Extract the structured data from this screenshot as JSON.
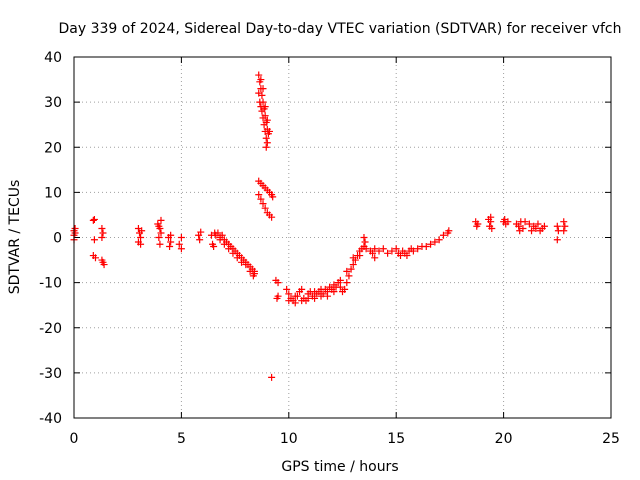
{
  "chart_data": {
    "type": "scatter",
    "title": "Day 339 of 2024, Sidereal Day-to-day VTEC variation (SDTVAR) for receiver vfch",
    "xlabel": "GPS time / hours",
    "ylabel": "SDTVAR / TECUs",
    "xlim": [
      0,
      25
    ],
    "ylim": [
      -40,
      40
    ],
    "x_ticks": [
      0,
      5,
      10,
      15,
      20,
      25
    ],
    "y_ticks": [
      -40,
      -30,
      -20,
      -10,
      0,
      10,
      20,
      30,
      40
    ],
    "grid": true,
    "marker": "+",
    "color": "#ff0000",
    "series": [
      {
        "name": "SDTVAR",
        "points": [
          [
            0.0,
            1.5
          ],
          [
            0.0,
            0.5
          ],
          [
            0.0,
            -0.5
          ],
          [
            0.05,
            2.0
          ],
          [
            0.05,
            1.0
          ],
          [
            0.9,
            3.8
          ],
          [
            0.95,
            4.0
          ],
          [
            0.95,
            -0.5
          ],
          [
            0.9,
            -4.0
          ],
          [
            1.0,
            -4.5
          ],
          [
            1.3,
            2.0
          ],
          [
            1.35,
            1.0
          ],
          [
            1.3,
            0.0
          ],
          [
            1.3,
            -5.0
          ],
          [
            1.4,
            -6.0
          ],
          [
            1.35,
            -5.5
          ],
          [
            3.0,
            2.0
          ],
          [
            3.05,
            1.0
          ],
          [
            3.1,
            0.0
          ],
          [
            3.0,
            -1.0
          ],
          [
            3.1,
            -1.5
          ],
          [
            3.15,
            1.5
          ],
          [
            3.9,
            3.0
          ],
          [
            4.0,
            2.0
          ],
          [
            4.05,
            1.0
          ],
          [
            3.95,
            0.0
          ],
          [
            4.0,
            -1.5
          ],
          [
            4.05,
            3.8
          ],
          [
            3.95,
            2.5
          ],
          [
            4.4,
            0.0
          ],
          [
            4.5,
            -1.0
          ],
          [
            4.45,
            -2.0
          ],
          [
            4.5,
            0.5
          ],
          [
            4.9,
            -1.5
          ],
          [
            5.0,
            -2.5
          ],
          [
            5.0,
            0.0
          ],
          [
            5.8,
            0.5
          ],
          [
            5.85,
            -0.5
          ],
          [
            5.9,
            1.2
          ],
          [
            6.4,
            0.5
          ],
          [
            6.45,
            -1.5
          ],
          [
            6.5,
            -2.0
          ],
          [
            6.55,
            1.0
          ],
          [
            6.6,
            0.5
          ],
          [
            6.8,
            0.0
          ],
          [
            7.0,
            -0.5
          ],
          [
            7.2,
            -1.5
          ],
          [
            7.4,
            -2.5
          ],
          [
            7.6,
            -3.5
          ],
          [
            7.8,
            -4.5
          ],
          [
            8.0,
            -5.5
          ],
          [
            8.2,
            -6.5
          ],
          [
            8.4,
            -7.5
          ],
          [
            6.7,
            1.0
          ],
          [
            6.9,
            0.5
          ],
          [
            7.1,
            -1.0
          ],
          [
            7.3,
            -2.0
          ],
          [
            7.5,
            -3.0
          ],
          [
            7.7,
            -4.0
          ],
          [
            7.9,
            -5.0
          ],
          [
            8.1,
            -6.0
          ],
          [
            8.3,
            -7.0
          ],
          [
            8.4,
            -8.0
          ],
          [
            6.8,
            -0.5
          ],
          [
            7.0,
            -1.5
          ],
          [
            7.2,
            -2.5
          ],
          [
            7.4,
            -3.5
          ],
          [
            7.6,
            -4.5
          ],
          [
            7.8,
            -5.5
          ],
          [
            8.0,
            -6.0
          ],
          [
            8.2,
            -7.5
          ],
          [
            8.35,
            -8.5
          ],
          [
            8.6,
            36.0
          ],
          [
            8.65,
            34.5
          ],
          [
            8.7,
            33.0
          ],
          [
            8.75,
            31.5
          ],
          [
            8.8,
            30.0
          ],
          [
            8.85,
            28.5
          ],
          [
            8.9,
            27.0
          ],
          [
            8.95,
            25.5
          ],
          [
            9.0,
            24.0
          ],
          [
            9.05,
            23.0
          ],
          [
            8.6,
            32.0
          ],
          [
            8.65,
            30.0
          ],
          [
            8.7,
            29.0
          ],
          [
            8.75,
            28.0
          ],
          [
            8.8,
            26.5
          ],
          [
            8.85,
            25.0
          ],
          [
            8.9,
            23.5
          ],
          [
            8.95,
            22.0
          ],
          [
            9.0,
            21.0
          ],
          [
            8.95,
            20.0
          ],
          [
            8.7,
            35.0
          ],
          [
            8.8,
            33.0
          ],
          [
            8.9,
            29.0
          ],
          [
            9.0,
            26.0
          ],
          [
            9.1,
            23.5
          ],
          [
            8.6,
            12.5
          ],
          [
            8.7,
            12.0
          ],
          [
            8.8,
            11.5
          ],
          [
            8.9,
            11.0
          ],
          [
            9.0,
            10.5
          ],
          [
            9.1,
            10.0
          ],
          [
            9.2,
            9.5
          ],
          [
            9.25,
            9.0
          ],
          [
            8.6,
            9.5
          ],
          [
            8.7,
            8.5
          ],
          [
            8.8,
            7.5
          ],
          [
            8.9,
            6.5
          ],
          [
            9.0,
            5.5
          ],
          [
            9.1,
            5.0
          ],
          [
            9.2,
            4.5
          ],
          [
            9.2,
            -31.0
          ],
          [
            9.4,
            -9.5
          ],
          [
            9.5,
            -10.0
          ],
          [
            9.45,
            -13.5
          ],
          [
            9.5,
            -13.0
          ],
          [
            9.9,
            -11.5
          ],
          [
            10.0,
            -12.5
          ],
          [
            10.1,
            -13.5
          ],
          [
            10.2,
            -14.0
          ],
          [
            10.3,
            -14.5
          ],
          [
            10.4,
            -13.0
          ],
          [
            10.5,
            -12.0
          ],
          [
            10.6,
            -11.5
          ],
          [
            10.7,
            -13.5
          ],
          [
            10.8,
            -14.0
          ],
          [
            10.9,
            -12.5
          ],
          [
            11.0,
            -12.0
          ],
          [
            11.1,
            -13.0
          ],
          [
            11.2,
            -13.5
          ],
          [
            11.3,
            -12.5
          ],
          [
            11.4,
            -12.0
          ],
          [
            11.5,
            -13.0
          ],
          [
            11.6,
            -12.5
          ],
          [
            11.7,
            -11.5
          ],
          [
            11.8,
            -12.0
          ],
          [
            11.9,
            -11.0
          ],
          [
            12.0,
            -11.5
          ],
          [
            12.1,
            -10.5
          ],
          [
            12.2,
            -11.0
          ],
          [
            12.3,
            -10.0
          ],
          [
            12.4,
            -11.0
          ],
          [
            12.5,
            -12.0
          ],
          [
            12.6,
            -11.5
          ],
          [
            12.7,
            -10.0
          ],
          [
            12.8,
            -8.5
          ],
          [
            12.9,
            -7.0
          ],
          [
            13.0,
            -6.0
          ],
          [
            13.1,
            -5.0
          ],
          [
            13.2,
            -4.0
          ],
          [
            13.3,
            -3.0
          ],
          [
            13.4,
            -2.5
          ],
          [
            13.5,
            -2.0
          ],
          [
            13.55,
            -1.0
          ],
          [
            13.5,
            0.0
          ],
          [
            10.0,
            -14.0
          ],
          [
            10.3,
            -13.0
          ],
          [
            10.6,
            -14.0
          ],
          [
            10.9,
            -13.5
          ],
          [
            11.2,
            -12.0
          ],
          [
            11.5,
            -11.5
          ],
          [
            11.8,
            -13.0
          ],
          [
            12.1,
            -12.0
          ],
          [
            12.4,
            -9.5
          ],
          [
            12.7,
            -7.5
          ],
          [
            13.0,
            -4.5
          ],
          [
            13.3,
            -4.0
          ],
          [
            13.6,
            -2.5
          ],
          [
            13.8,
            -3.0
          ],
          [
            14.0,
            -2.5
          ],
          [
            14.2,
            -3.0
          ],
          [
            14.4,
            -2.5
          ],
          [
            14.6,
            -3.5
          ],
          [
            14.8,
            -3.0
          ],
          [
            14.0,
            -4.5
          ],
          [
            13.9,
            -3.5
          ],
          [
            15.0,
            -2.5
          ],
          [
            15.1,
            -3.5
          ],
          [
            15.2,
            -4.0
          ],
          [
            15.3,
            -3.0
          ],
          [
            15.4,
            -3.5
          ],
          [
            15.5,
            -4.0
          ],
          [
            15.6,
            -3.0
          ],
          [
            15.7,
            -2.5
          ],
          [
            15.8,
            -3.0
          ],
          [
            16.0,
            -2.5
          ],
          [
            16.2,
            -2.0
          ],
          [
            16.4,
            -2.0
          ],
          [
            16.6,
            -1.5
          ],
          [
            16.8,
            -1.0
          ],
          [
            17.0,
            -0.5
          ],
          [
            17.2,
            0.5
          ],
          [
            17.4,
            1.0
          ],
          [
            17.45,
            1.5
          ],
          [
            18.7,
            3.5
          ],
          [
            18.8,
            3.0
          ],
          [
            18.75,
            2.5
          ],
          [
            19.3,
            4.0
          ],
          [
            19.4,
            3.5
          ],
          [
            19.35,
            2.5
          ],
          [
            19.45,
            2.0
          ],
          [
            19.4,
            4.5
          ],
          [
            20.0,
            3.5
          ],
          [
            20.1,
            3.0
          ],
          [
            20.2,
            3.5
          ],
          [
            20.05,
            4.0
          ],
          [
            20.6,
            3.0
          ],
          [
            20.7,
            2.5
          ],
          [
            20.8,
            3.5
          ],
          [
            20.9,
            2.0
          ],
          [
            20.75,
            1.5
          ],
          [
            21.0,
            3.5
          ],
          [
            21.2,
            3.0
          ],
          [
            21.4,
            2.5
          ],
          [
            21.6,
            3.0
          ],
          [
            21.8,
            2.0
          ],
          [
            21.3,
            1.5
          ],
          [
            21.5,
            2.0
          ],
          [
            21.7,
            1.5
          ],
          [
            21.9,
            2.5
          ],
          [
            22.5,
            2.5
          ],
          [
            22.55,
            1.5
          ],
          [
            22.5,
            -0.5
          ],
          [
            22.8,
            3.5
          ],
          [
            22.85,
            2.5
          ],
          [
            22.8,
            1.5
          ]
        ]
      }
    ]
  }
}
